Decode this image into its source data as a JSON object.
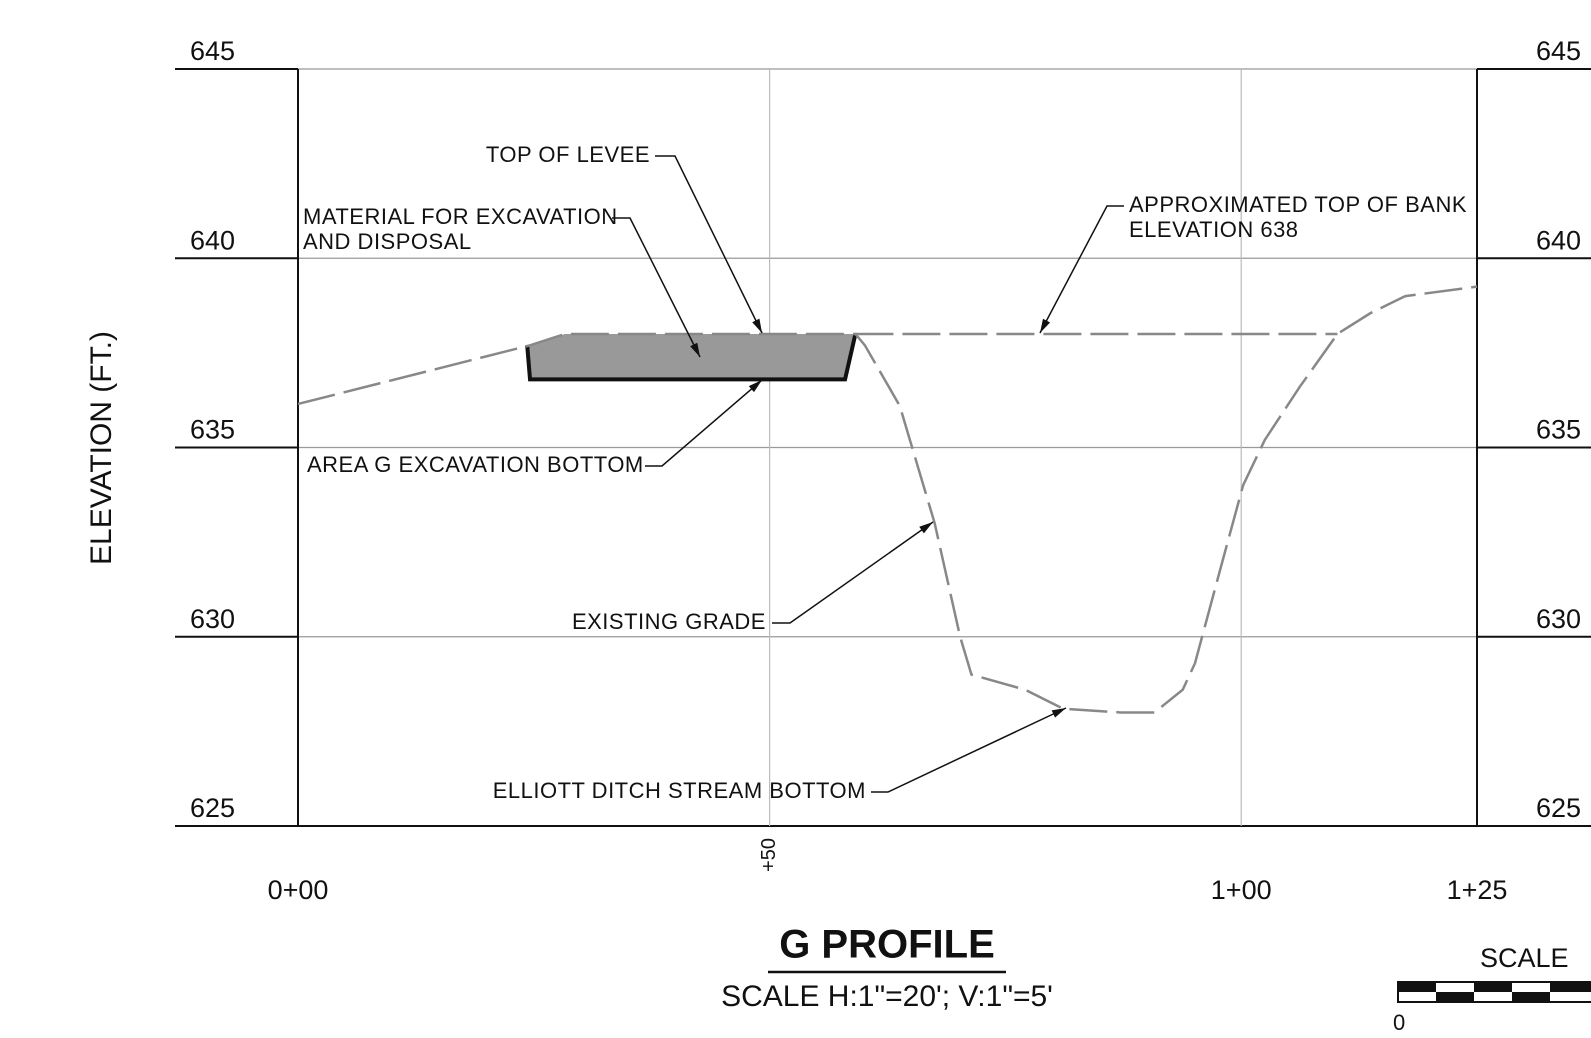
{
  "chart_data": {
    "type": "line",
    "title": "G PROFILE",
    "subtitle": "SCALE  H:1\"=20';  V:1\"=5'",
    "ylabel": "ELEVATION  (FT.)",
    "xlim": [
      0,
      125
    ],
    "ylim": [
      625,
      645
    ],
    "xticks": [
      {
        "value": 0,
        "label": "0+00"
      },
      {
        "value": 50,
        "label": "+50"
      },
      {
        "value": 100,
        "label": "1+00"
      },
      {
        "value": 125,
        "label": "1+25"
      }
    ],
    "yticks": [
      625,
      630,
      635,
      640,
      645
    ],
    "grid": true,
    "series": [
      {
        "name": "EXISTING GRADE",
        "color": "#888888",
        "x": [
          0,
          24.6,
          28.3,
          59.1,
          60.1,
          63.8,
          67.5,
          70.2,
          71.4,
          77.1,
          81.1,
          87.2,
          90.8,
          93.8,
          95.1,
          97.8,
          100.2,
          102.5,
          106.2,
          110.2,
          113.7,
          117.4,
          125
        ],
        "values": [
          636.15,
          637.7,
          638.0,
          638.0,
          637.7,
          636.1,
          633.0,
          630.0,
          629.0,
          628.6,
          628.1,
          628.0,
          628.0,
          628.6,
          629.3,
          631.8,
          634.0,
          635.2,
          636.6,
          638.0,
          638.55,
          639.0,
          639.25
        ]
      },
      {
        "name": "APPROXIMATED TOP OF BANK",
        "color": "#888888",
        "x": [
          59.1,
          110.2
        ],
        "values": [
          638,
          638
        ]
      }
    ],
    "excavation": {
      "color": "#999999",
      "top_x": [
        24.3,
        28.3,
        59.1
      ],
      "top": [
        637.7,
        638,
        638
      ],
      "bottom_x": [
        24.6,
        58.0
      ],
      "bottom": [
        636.8,
        636.8
      ]
    },
    "annotations": [
      {
        "lines": [
          "TOP  OF  LEVEE"
        ]
      },
      {
        "lines": [
          "MATERIAL  FOR  EXCAVATION",
          "AND  DISPOSAL"
        ]
      },
      {
        "lines": [
          "AREA  G  EXCAVATION  BOTTOM"
        ]
      },
      {
        "lines": [
          "EXISTING  GRADE"
        ]
      },
      {
        "lines": [
          "ELLIOTT  DITCH  STREAM  BOTTOM"
        ]
      },
      {
        "lines": [
          "APPROXIMATED  TOP  OF  BANK",
          "ELEVATION  638"
        ]
      }
    ],
    "scale_bar": {
      "label": "SCALE",
      "start": "0"
    }
  }
}
